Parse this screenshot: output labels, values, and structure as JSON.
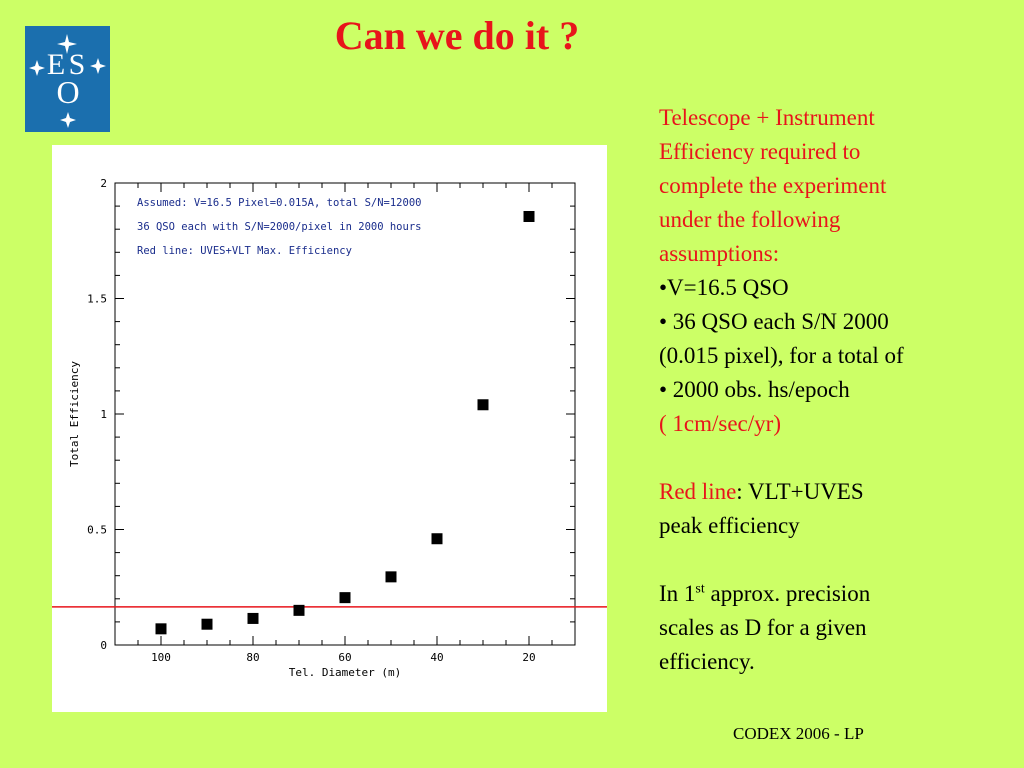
{
  "slide": {
    "title": "Can we do it ?",
    "footer": "CODEX  2006 - LP"
  },
  "logo": {
    "letters": [
      "E",
      "S",
      "O"
    ],
    "icon": "eso-logo-icon",
    "background": "#1b6fae"
  },
  "text": {
    "line1": "Telescope + Instrument",
    "line2": "Efficiency required to",
    "line3": "complete the experiment",
    "line4": "under the following",
    "line5": "assumptions:",
    "bullet1": "•V=16.5 QSO",
    "bullet2": "• 36 QSO  each  S/N 2000",
    "bullet2b": "(0.015 pixel), for a total of",
    "bullet3": "• 2000 obs. hs/epoch",
    "bullet3b": "( 1cm/sec/yr)",
    "redline_label": "Red line",
    "redline_rest": ": VLT+UVES",
    "redline_rest2": "peak efficiency",
    "approx_a": "In 1",
    "approx_sup": "st",
    "approx_b": " approx. precision",
    "approx_c": "scales as D for a given",
    "approx_d": "efficiency."
  },
  "chart_data": {
    "type": "scatter",
    "xlabel": "Tel. Diameter (m)",
    "ylabel": "Total Efficiency",
    "xlim": [
      110,
      10
    ],
    "ylim": [
      0,
      2
    ],
    "x_reversed": true,
    "x_ticks": [
      100,
      80,
      60,
      40,
      20
    ],
    "y_ticks": [
      0,
      0.5,
      1,
      1.5,
      2
    ],
    "y_tick_labels": [
      "0",
      "0.5",
      "1",
      "1.5",
      "2"
    ],
    "x": [
      100,
      90,
      80,
      70,
      60,
      50,
      40,
      30,
      20
    ],
    "y": [
      0.07,
      0.09,
      0.115,
      0.15,
      0.205,
      0.295,
      0.46,
      1.04,
      1.855
    ],
    "reference_line": {
      "y": 0.165,
      "color": "#e8141b"
    },
    "annotations": [
      "Assumed: V=16.5 Pixel=0.015A, total S/N=12000",
      "36 QSO each with S/N=2000/pixel in 2000 hours",
      "Red line: UVES+VLT Max. Efficiency"
    ],
    "annotation_color": "#1a2d8c",
    "grid": false
  }
}
